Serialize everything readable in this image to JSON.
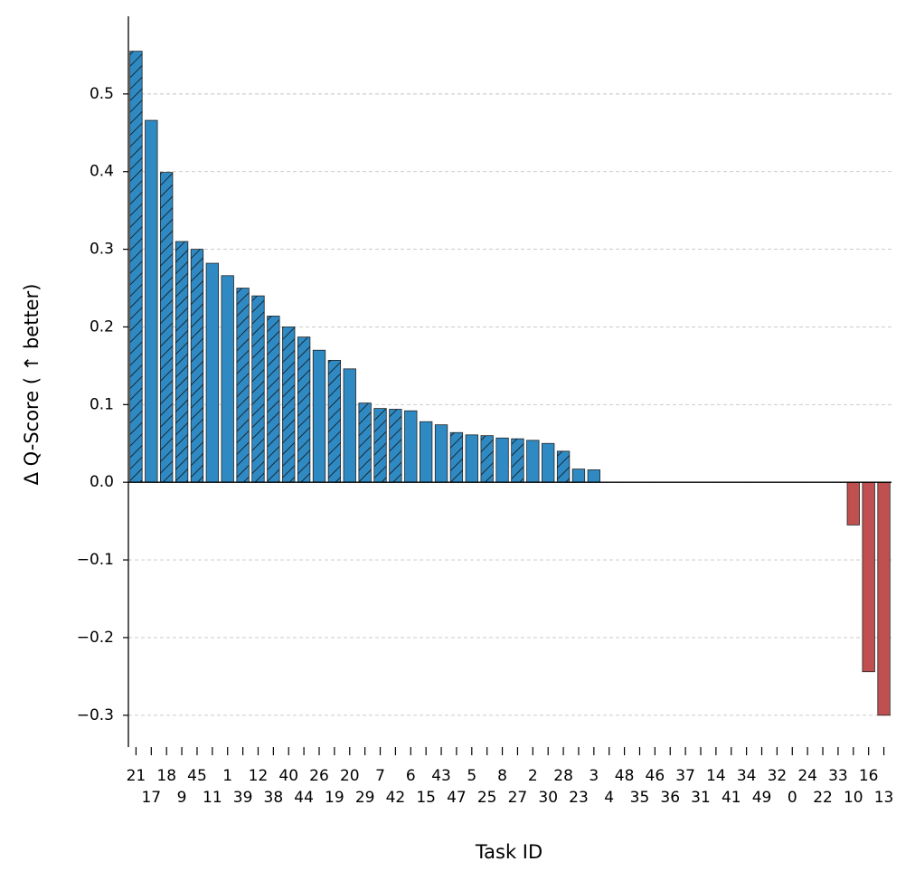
{
  "chart_data": {
    "type": "bar",
    "x_label": "Task ID",
    "y_label": "Δ Q-Score ( ↑  better)",
    "categories": [
      "21",
      "17",
      "18",
      "9",
      "45",
      "11",
      "1",
      "39",
      "12",
      "38",
      "40",
      "44",
      "26",
      "19",
      "20",
      "29",
      "7",
      "42",
      "6",
      "15",
      "43",
      "47",
      "5",
      "25",
      "8",
      "27",
      "2",
      "30",
      "28",
      "23",
      "3",
      "4",
      "48",
      "35",
      "46",
      "36",
      "37",
      "31",
      "14",
      "41",
      "34",
      "49",
      "32",
      "0",
      "24",
      "22",
      "33",
      "10",
      "16",
      "13"
    ],
    "values": [
      0.555,
      0.466,
      0.399,
      0.31,
      0.3,
      0.282,
      0.266,
      0.25,
      0.24,
      0.214,
      0.2,
      0.187,
      0.17,
      0.157,
      0.146,
      0.102,
      0.095,
      0.094,
      0.092,
      0.078,
      0.074,
      0.064,
      0.061,
      0.06,
      0.057,
      0.056,
      0.054,
      0.05,
      0.04,
      0.017,
      0.016,
      0,
      0,
      0,
      0,
      0,
      0,
      0,
      0,
      0,
      0,
      0,
      0,
      0,
      0,
      0,
      0,
      -0.055,
      -0.244,
      -0.3
    ],
    "hatch": [
      true,
      false,
      true,
      true,
      true,
      false,
      false,
      true,
      true,
      true,
      true,
      true,
      false,
      true,
      false,
      true,
      true,
      true,
      false,
      false,
      false,
      true,
      false,
      true,
      false,
      true,
      false,
      false,
      true,
      false,
      false,
      false,
      false,
      false,
      false,
      false,
      false,
      false,
      false,
      false,
      false,
      false,
      false,
      false,
      false,
      false,
      false,
      false,
      false,
      false
    ],
    "color": "#2f8ac4",
    "negative_color": "#c0504f",
    "ylim": [
      -0.341,
      0.6
    ],
    "yticks": [
      {
        "value": -0.3,
        "label": "−0.3"
      },
      {
        "value": -0.2,
        "label": "−0.2"
      },
      {
        "value": -0.1,
        "label": "−0.1"
      },
      {
        "value": 0,
        "label": "0.0"
      },
      0.1,
      0.2,
      0.3,
      0.4,
      0.5
    ],
    "grid": true
  }
}
